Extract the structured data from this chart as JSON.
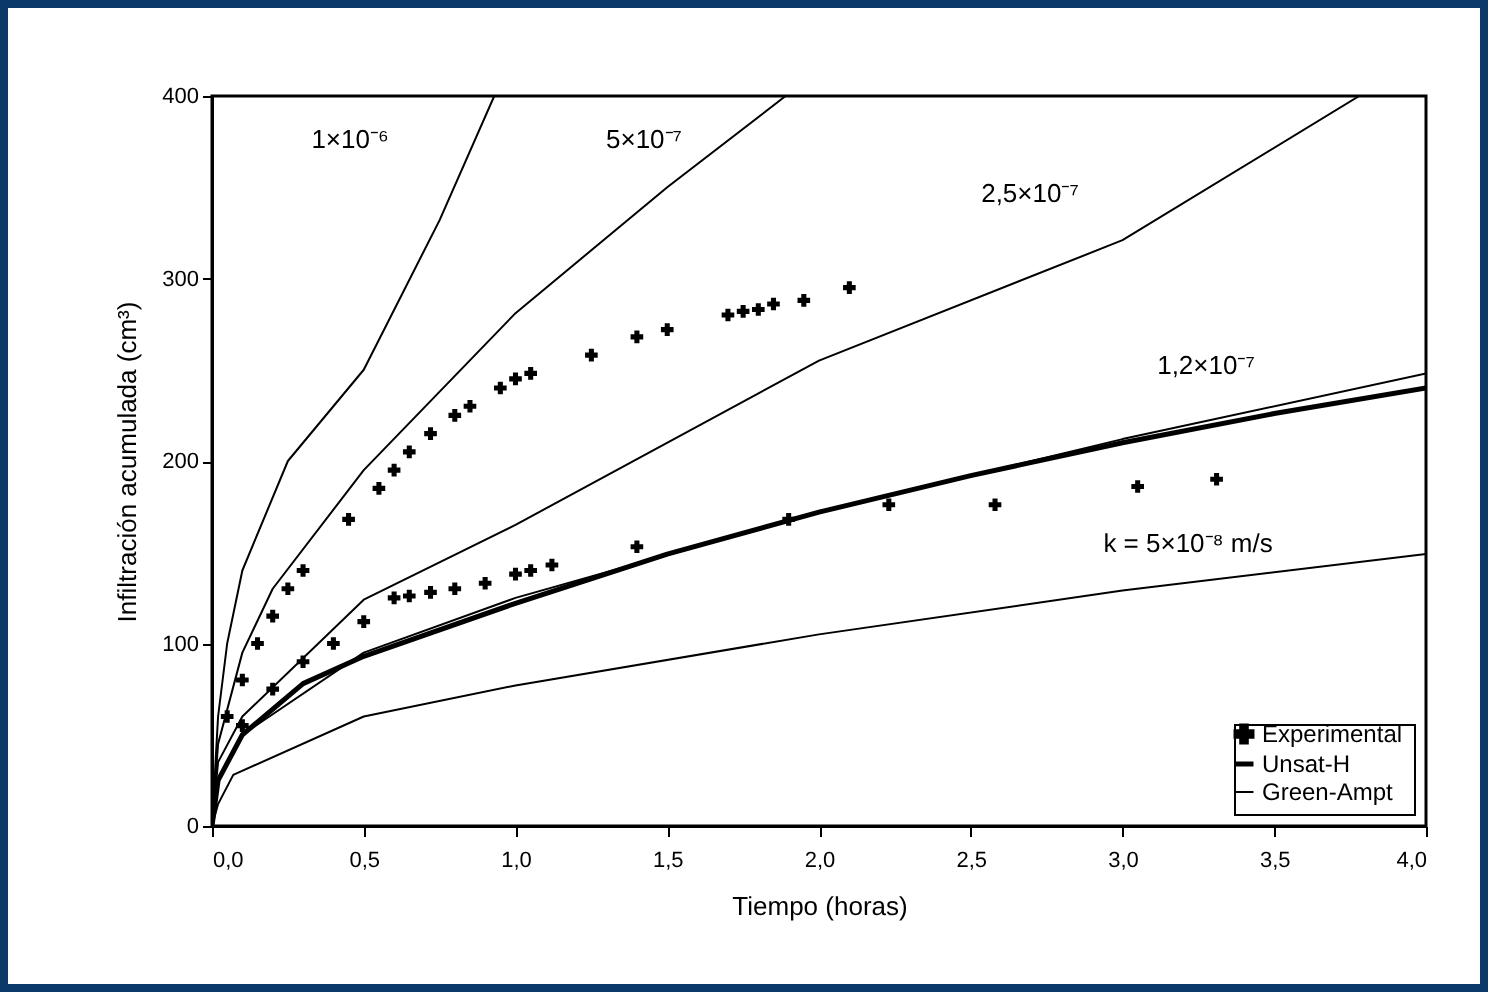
{
  "chart_data": {
    "type": "line",
    "xlabel": "Tiempo (horas)",
    "ylabel": "Infiltración acumulada (cm³)",
    "xlim": [
      0,
      4
    ],
    "ylim": [
      0,
      400
    ],
    "xticks": [
      {
        "value": 0,
        "label": "0,0"
      },
      {
        "value": 0.5,
        "label": "0,5"
      },
      {
        "value": 1,
        "label": "1,0"
      },
      {
        "value": 1.5,
        "label": "1,5"
      },
      {
        "value": 2,
        "label": "2,0"
      },
      {
        "value": 2.5,
        "label": "2,5"
      },
      {
        "value": 3,
        "label": "3,0"
      },
      {
        "value": 3.5,
        "label": "3,5"
      },
      {
        "value": 4,
        "label": "4,0"
      }
    ],
    "yticks": [
      0,
      100,
      200,
      300,
      400
    ],
    "grid": false,
    "legend": "bottom right",
    "series": [
      {
        "name": "Experimental",
        "type": "scatter",
        "marker": "cross",
        "color": "#000000",
        "x": [
          0.05,
          0.1,
          0.15,
          0.2,
          0.25,
          0.3,
          0.45,
          0.55,
          0.6,
          0.65,
          0.72,
          0.8,
          0.85,
          0.95,
          1.0,
          1.05,
          1.25,
          1.4,
          1.5,
          1.7,
          1.75,
          1.8,
          1.85,
          1.95,
          2.1,
          0.1,
          0.2,
          0.3,
          0.4,
          0.5,
          0.6,
          0.65,
          0.72,
          0.8,
          0.9,
          1.0,
          1.05,
          1.12,
          1.4,
          1.9,
          2.23,
          2.58,
          3.05,
          3.31
        ],
        "values": [
          60,
          80,
          100,
          115,
          130,
          140,
          168,
          185,
          195,
          205,
          215,
          225,
          230,
          240,
          245,
          248,
          258,
          268,
          272,
          280,
          282,
          283,
          286,
          288,
          295,
          55,
          75,
          90,
          100,
          112,
          125,
          126,
          128,
          130,
          133,
          138,
          140,
          143,
          153,
          168,
          176,
          176,
          186,
          190
        ]
      },
      {
        "name": "Unsat-H",
        "color": "#000000",
        "x": [
          0,
          0.02,
          0.1,
          0.3,
          0.5,
          1,
          1.5,
          2,
          2.5,
          3,
          3.5,
          4
        ],
        "values": [
          0,
          25,
          50,
          78,
          93,
          122,
          149,
          172,
          192,
          210,
          226,
          240
        ]
      },
      {
        "name": "Green-Ampt",
        "color": "#000000",
        "x": [
          0,
          0.02,
          0.05,
          0.1,
          0.25,
          0.5,
          0.75,
          0.93
        ],
        "values": [
          0,
          60,
          100,
          140,
          200,
          250,
          332,
          400
        ]
      },
      {
        "color": "#000000",
        "x": [
          0,
          0.02,
          0.1,
          0.2,
          0.5,
          1,
          1.5,
          1.89
        ],
        "values": [
          0,
          45,
          95,
          130,
          195,
          281,
          350,
          400
        ]
      },
      {
        "color": "#000000",
        "x": [
          0,
          0.02,
          0.1,
          0.5,
          1,
          2,
          3,
          3.78
        ],
        "values": [
          0,
          35,
          60,
          124,
          165,
          255,
          321,
          400
        ]
      },
      {
        "color": "#000000",
        "x": [
          0,
          0.02,
          0.1,
          0.5,
          1,
          2,
          3,
          4
        ],
        "values": [
          0,
          25,
          50,
          95,
          125,
          172,
          212,
          248
        ]
      },
      {
        "color": "#000000",
        "x": [
          0,
          0.02,
          0.07,
          0.5,
          1,
          2,
          3,
          4
        ],
        "values": [
          0,
          12,
          28,
          60,
          77,
          105,
          129,
          149
        ]
      }
    ],
    "annotations": [
      "1×10⁻⁶",
      "5×10⁻⁷",
      "2,5×10⁻⁷",
      "1,2×10⁻⁷",
      "k = 5×10⁻⁸ m/s"
    ]
  }
}
